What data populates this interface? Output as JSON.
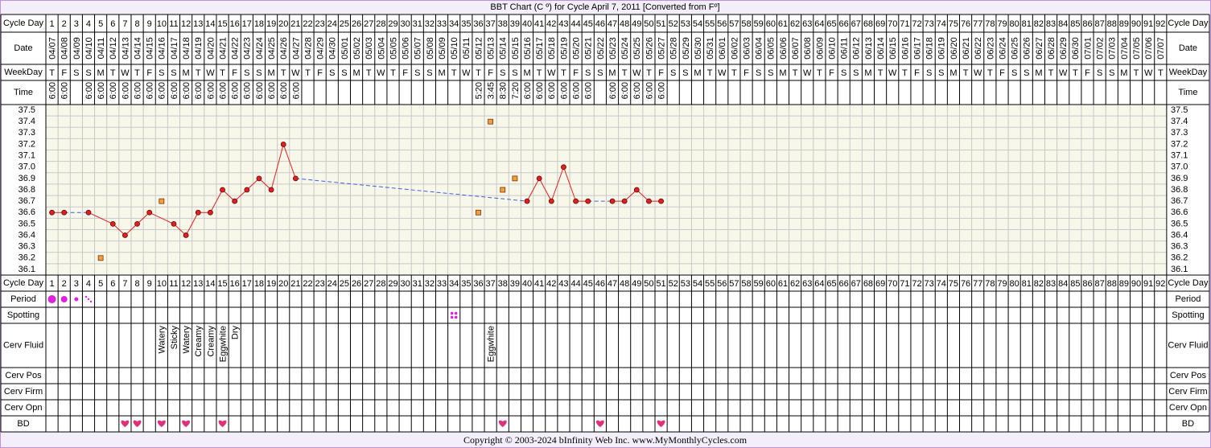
{
  "chart_data": {
    "type": "line",
    "title": "BBT Chart (C º) for Cycle April 7, 2011  [Converted from Fº]",
    "row_labels": {
      "cycle_day": "Cycle Day",
      "date": "Date",
      "weekday": "WeekDay",
      "time": "Time",
      "period": "Period",
      "spotting": "Spotting",
      "cerv_fluid": "Cerv Fluid",
      "cerv_pos": "Cerv Pos",
      "cerv_firm": "Cerv Firm",
      "cerv_opn": "Cerv Opn",
      "bd": "BD"
    },
    "categories": [
      1,
      2,
      3,
      4,
      5,
      6,
      7,
      8,
      9,
      10,
      11,
      12,
      13,
      14,
      15,
      16,
      17,
      18,
      19,
      20,
      21,
      22,
      23,
      24,
      25,
      26,
      27,
      28,
      29,
      30,
      31,
      32,
      33,
      34,
      35,
      36,
      37,
      38,
      39,
      40,
      41,
      42,
      43,
      44,
      45,
      46,
      47,
      48,
      49,
      50,
      51,
      52,
      53,
      54,
      55,
      56,
      57,
      58,
      59,
      60,
      61,
      62,
      63,
      64,
      65,
      66,
      67,
      68,
      69,
      70,
      71,
      72,
      73,
      74,
      75,
      76,
      77,
      78,
      79,
      80,
      81,
      82,
      83,
      84,
      85,
      86,
      87,
      88,
      89,
      90,
      91,
      92
    ],
    "dates": [
      "04/07",
      "04/08",
      "04/09",
      "04/10",
      "04/11",
      "04/12",
      "04/13",
      "04/14",
      "04/15",
      "04/16",
      "04/17",
      "04/18",
      "04/19",
      "04/20",
      "04/21",
      "04/22",
      "04/23",
      "04/24",
      "04/25",
      "04/26",
      "04/27",
      "04/28",
      "04/29",
      "04/30",
      "05/01",
      "05/02",
      "05/03",
      "05/04",
      "05/05",
      "05/06",
      "05/07",
      "05/08",
      "05/09",
      "05/10",
      "05/11",
      "05/12",
      "05/13",
      "05/14",
      "05/15",
      "05/16",
      "05/17",
      "05/18",
      "05/19",
      "05/20",
      "05/21",
      "05/22",
      "05/23",
      "05/24",
      "05/25",
      "05/26",
      "05/27",
      "05/28",
      "05/29",
      "05/30",
      "05/31",
      "06/01",
      "06/02",
      "06/03",
      "06/04",
      "06/05",
      "06/06",
      "06/07",
      "06/08",
      "06/09",
      "06/10",
      "06/11",
      "06/12",
      "06/13",
      "06/14",
      "06/15",
      "06/16",
      "06/17",
      "06/18",
      "06/19",
      "06/20",
      "06/21",
      "06/22",
      "06/23",
      "06/24",
      "06/25",
      "06/26",
      "06/27",
      "06/28",
      "06/29",
      "06/30",
      "07/01",
      "07/02",
      "07/03",
      "07/04",
      "07/05",
      "07/06",
      "07/07"
    ],
    "weekdays": [
      "T",
      "F",
      "S",
      "S",
      "M",
      "T",
      "W",
      "T",
      "F",
      "S",
      "S",
      "M",
      "T",
      "W",
      "T",
      "F",
      "S",
      "S",
      "M",
      "T",
      "W",
      "T",
      "F",
      "S",
      "S",
      "M",
      "T",
      "W",
      "T",
      "F",
      "S",
      "S",
      "M",
      "T",
      "W",
      "T",
      "F",
      "S",
      "S",
      "M",
      "T",
      "W",
      "T",
      "F",
      "S",
      "S",
      "M",
      "T",
      "W",
      "T",
      "F",
      "S",
      "S",
      "M",
      "T",
      "W",
      "T",
      "F",
      "S",
      "S",
      "M",
      "T",
      "W",
      "T",
      "F",
      "S",
      "S",
      "M",
      "T",
      "W",
      "T",
      "F",
      "S",
      "S",
      "M",
      "T",
      "W",
      "T",
      "F",
      "S",
      "S",
      "M",
      "T",
      "W",
      "T",
      "F",
      "S",
      "S",
      "M",
      "T",
      "W",
      "T"
    ],
    "times": [
      "6:00",
      "6:00",
      null,
      "6:00",
      "6:00",
      "6:00",
      "6:00",
      "6:00",
      "6:00",
      "6:00",
      "6:00",
      "6:00",
      "6:00",
      "6:00",
      "6:00",
      "6:00",
      "6:00",
      "6:00",
      "6:00",
      "6:00",
      "6:00",
      null,
      null,
      null,
      null,
      null,
      null,
      null,
      null,
      null,
      null,
      null,
      null,
      null,
      null,
      "5:20",
      "3:45",
      "8:30",
      "7:20",
      "6:00",
      "6:00",
      "6:00",
      "6:00",
      "6:00",
      "6:00",
      null,
      "6:00",
      "6:00",
      "6:00",
      "6:00",
      "6:00",
      null,
      null,
      null,
      null,
      null,
      null,
      null,
      null,
      null,
      null,
      null,
      null,
      null,
      null,
      null,
      null,
      null,
      null,
      null,
      null,
      null,
      null,
      null,
      null,
      null,
      null,
      null,
      null,
      null,
      null,
      null,
      null,
      null,
      null,
      null,
      null,
      null,
      null,
      null,
      null,
      null
    ],
    "cerv_fluid": [
      null,
      null,
      null,
      null,
      null,
      null,
      null,
      null,
      null,
      "Watery",
      "Sticky",
      "Watery",
      "Creamy",
      "Creamy",
      "Eggwhite",
      "Dry",
      null,
      null,
      null,
      null,
      null,
      null,
      null,
      null,
      null,
      null,
      null,
      null,
      null,
      null,
      null,
      null,
      null,
      null,
      null,
      null,
      "Eggwhite",
      null,
      null,
      null,
      null,
      null,
      null,
      null,
      null,
      null,
      null,
      null,
      null,
      null,
      null,
      null,
      null,
      null,
      null,
      null,
      null,
      null,
      null,
      null,
      null,
      null,
      null,
      null,
      null,
      null,
      null,
      null,
      null,
      null,
      null,
      null,
      null,
      null,
      null,
      null,
      null,
      null,
      null,
      null,
      null,
      null,
      null,
      null,
      null,
      null,
      null,
      null,
      null,
      null,
      null,
      null
    ],
    "series": [
      {
        "color": "#e02020",
        "values": [
          36.6,
          36.6,
          null,
          36.6,
          null,
          36.5,
          36.4,
          36.5,
          36.6,
          null,
          36.5,
          36.4,
          36.6,
          36.6,
          36.8,
          36.7,
          36.8,
          36.9,
          36.8,
          37.2,
          36.9,
          null,
          null,
          null,
          null,
          null,
          null,
          null,
          null,
          null,
          null,
          null,
          null,
          null,
          null,
          null,
          null,
          null,
          null,
          36.7,
          36.9,
          36.7,
          37.0,
          36.7,
          36.7,
          null,
          36.7,
          36.7,
          36.8,
          36.7,
          36.7,
          null,
          null,
          null,
          null,
          null,
          null,
          null,
          null,
          null,
          null,
          null,
          null,
          null,
          null,
          null,
          null,
          null,
          null,
          null,
          null,
          null,
          null,
          null,
          null,
          null,
          null,
          null,
          null,
          null,
          null,
          null,
          null,
          null,
          null,
          null,
          null,
          null,
          null,
          null,
          null,
          null
        ]
      },
      {
        "color": "#f0a040",
        "values": [
          null,
          null,
          null,
          null,
          36.2,
          null,
          null,
          null,
          null,
          36.7,
          null,
          null,
          null,
          null,
          null,
          null,
          null,
          null,
          null,
          null,
          null,
          null,
          null,
          null,
          null,
          null,
          null,
          null,
          null,
          null,
          null,
          null,
          null,
          null,
          null,
          36.6,
          37.4,
          36.8,
          36.9,
          null,
          null,
          null,
          null,
          null,
          null,
          null,
          null,
          null,
          null,
          null,
          null,
          null,
          null,
          null,
          null,
          null,
          null,
          null,
          null,
          null,
          null,
          null,
          null,
          null,
          null,
          null,
          null,
          null,
          null,
          null,
          null,
          null,
          null,
          null,
          null,
          null,
          null,
          null,
          null,
          null,
          null,
          null,
          null,
          null,
          null,
          null,
          null,
          null,
          null,
          null,
          null,
          null
        ]
      }
    ],
    "ylim": [
      36.1,
      37.5
    ],
    "yticks": [
      37.5,
      37.4,
      37.3,
      37.2,
      37.1,
      {
        "value": 37.0,
        "label": "37.0"
      },
      36.9,
      36.8,
      36.7,
      36.6,
      36.5,
      36.4,
      36.3,
      36.2,
      36.1
    ],
    "gap_line_color": "#4060e0",
    "footer": "Copyright © 2003-2024 bInfinity Web Inc.     www.MyMonthlyCycles.com"
  }
}
